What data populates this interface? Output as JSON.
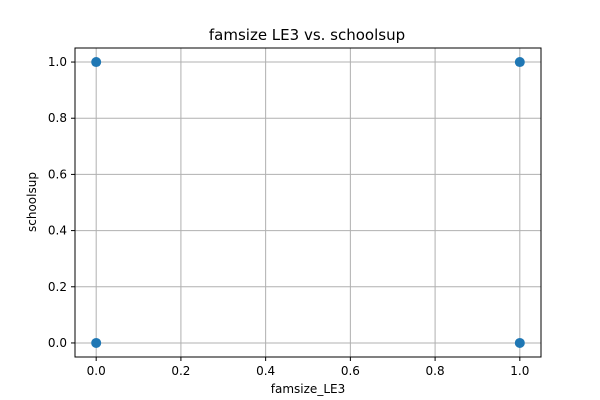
{
  "chart_data": {
    "type": "scatter",
    "title": "famsize LE3 vs. schoolsup",
    "xlabel": "famsize_LE3",
    "ylabel": "schoolsup",
    "xlim": [
      -0.05,
      1.05
    ],
    "ylim": [
      -0.05,
      1.05
    ],
    "xticks": [
      0.0,
      0.2,
      0.4,
      0.6,
      0.8,
      1.0
    ],
    "yticks": [
      0.0,
      0.2,
      0.4,
      0.6,
      0.8,
      1.0
    ],
    "xtick_labels": [
      "0.0",
      "0.2",
      "0.4",
      "0.6",
      "0.8",
      "1.0"
    ],
    "ytick_labels": [
      "0.0",
      "0.2",
      "0.4",
      "0.6",
      "0.8",
      "1.0"
    ],
    "grid": true,
    "marker_color": "#1f77b4",
    "points": [
      {
        "x": 0,
        "y": 1
      },
      {
        "x": 1,
        "y": 1
      },
      {
        "x": 0,
        "y": 0
      },
      {
        "x": 1,
        "y": 0
      }
    ]
  }
}
